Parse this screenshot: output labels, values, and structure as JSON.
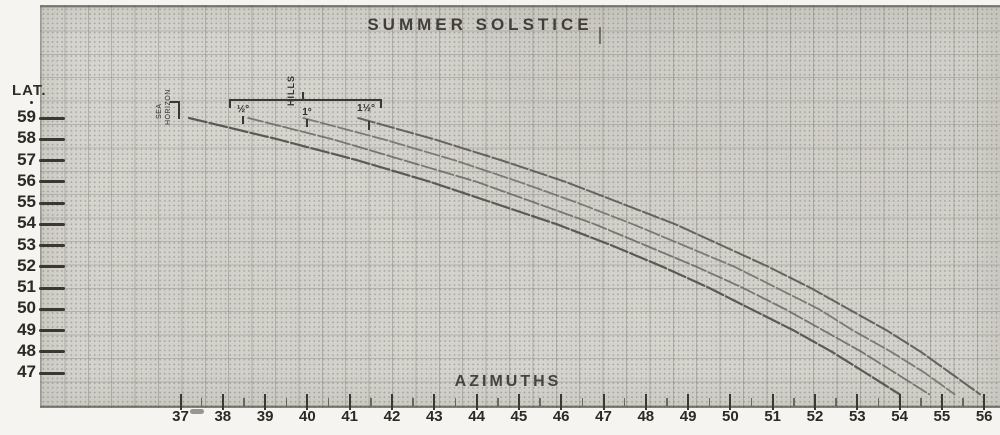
{
  "title": "SUMMER SOLSTICE",
  "axis": {
    "y_label": "LAT.",
    "x_label": "AZIMUTHS",
    "lat_ticks": [
      59,
      58,
      57,
      56,
      55,
      54,
      53,
      52,
      51,
      50,
      49,
      48,
      47
    ],
    "az_ticks": [
      37,
      38,
      39,
      40,
      41,
      42,
      43,
      44,
      45,
      46,
      47,
      48,
      49,
      50,
      51,
      52,
      53,
      54,
      55,
      56
    ]
  },
  "annotations": {
    "sea_horizon_line1": "SEA",
    "sea_horizon_line2": "HORIZON",
    "hills": "HILLS",
    "hill_altitude_labels": [
      "½°",
      "1°",
      "1½°"
    ]
  },
  "colors": {
    "paper": "#d8d7d1",
    "margin": "#f5f4f0",
    "ink": "#3a3831",
    "curve_sea": "#4f4d46",
    "curve_hills": "#66645c"
  },
  "chart_data": {
    "type": "line",
    "title": "SUMMER SOLSTICE",
    "xlabel": "AZIMUTHS",
    "ylabel": "LAT.",
    "xlim": [
      33.7,
      56.4
    ],
    "ylim": [
      45.7,
      60.3
    ],
    "grid": true,
    "legend_position": "labels-at-curve-start",
    "x_ticks": [
      37,
      38,
      39,
      40,
      41,
      42,
      43,
      44,
      45,
      46,
      47,
      48,
      49,
      50,
      51,
      52,
      53,
      54,
      55,
      56
    ],
    "y_ticks": [
      59,
      58,
      57,
      56,
      55,
      54,
      53,
      52,
      51,
      50,
      49,
      48,
      47
    ],
    "lat": [
      59,
      58,
      57,
      56,
      55,
      54,
      53,
      52,
      51,
      50,
      49,
      48,
      47,
      46
    ],
    "series": [
      {
        "name": "SEA HORIZON",
        "azimuth": [
          37.2,
          39.3,
          41.2,
          42.9,
          44.4,
          45.9,
          47.2,
          48.4,
          49.5,
          50.5,
          51.5,
          52.4,
          53.2,
          54.0
        ]
      },
      {
        "name": "HILLS ½°",
        "azimuth": [
          38.6,
          40.6,
          42.3,
          44.0,
          45.4,
          46.8,
          48.0,
          49.2,
          50.3,
          51.3,
          52.2,
          53.1,
          53.9,
          54.7
        ]
      },
      {
        "name": "HILLS 1°",
        "azimuth": [
          39.9,
          41.8,
          43.5,
          45.0,
          46.4,
          47.7,
          48.9,
          50.1,
          51.1,
          52.1,
          52.9,
          53.8,
          54.6,
          55.3
        ]
      },
      {
        "name": "HILLS 1½°",
        "azimuth": [
          41.2,
          43.0,
          44.6,
          46.1,
          47.4,
          48.7,
          49.8,
          50.9,
          51.9,
          52.8,
          53.7,
          54.5,
          55.2,
          55.9
        ]
      }
    ]
  }
}
